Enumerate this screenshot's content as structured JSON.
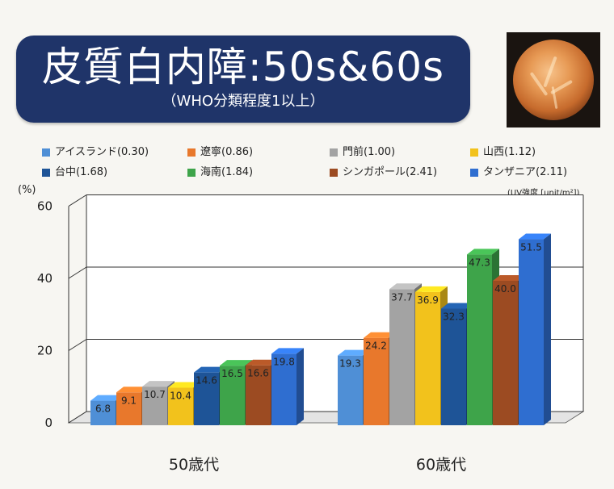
{
  "title": "皮質白内障:50s&60s",
  "subtitle": "（WHO分類程度1以上）",
  "uv_note": "(UV強度 [unit/m²])",
  "y_unit": "(%)",
  "colors": {
    "title_bg": "#1f3469"
  },
  "chart_data": {
    "type": "bar",
    "title": "皮質白内障:50s&60s",
    "subtitle": "（WHO分類程度1以上）",
    "ylabel": "(%)",
    "ylim": [
      0,
      60
    ],
    "yticks": [
      0,
      20,
      40,
      60
    ],
    "categories": [
      "50歳代",
      "60歳代"
    ],
    "legend_position": "top",
    "grid": true,
    "series": [
      {
        "name": "アイスランド(0.30)",
        "color": "#4f8fd6",
        "values": [
          6.8,
          19.3
        ]
      },
      {
        "name": "遼寧(0.86)",
        "color": "#e8782c",
        "values": [
          9.1,
          24.2
        ]
      },
      {
        "name": "門前(1.00)",
        "color": "#a3a3a3",
        "values": [
          10.7,
          37.7
        ]
      },
      {
        "name": "山西(1.12)",
        "color": "#f2c21c",
        "values": [
          10.4,
          36.9
        ]
      },
      {
        "name": "台中(1.68)",
        "color": "#1e5497",
        "values": [
          14.6,
          32.3
        ]
      },
      {
        "name": "海南(1.84)",
        "color": "#3ea44a",
        "values": [
          16.5,
          47.3
        ]
      },
      {
        "name": "シンガポール(2.41)",
        "color": "#9c4b22",
        "values": [
          16.6,
          40.0
        ]
      },
      {
        "name": "タンザニア(2.11)",
        "color": "#2f6ed0",
        "values": [
          19.8,
          51.5
        ]
      }
    ]
  }
}
